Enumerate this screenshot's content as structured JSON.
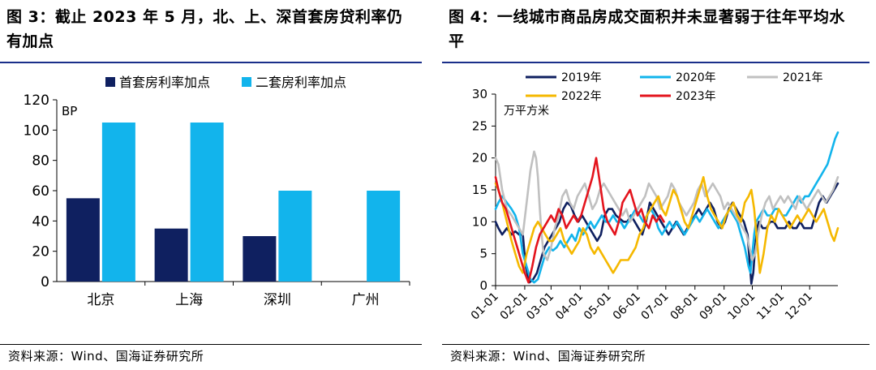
{
  "left": {
    "title": "图 3：截止 2023 年 5 月，北、上、深首套房贷利率仍有加点",
    "source": "资料来源：Wind、国海证券研究所"
  },
  "right": {
    "title": "图 4：一线城市商品房成交面积并未显著弱于往年平均水平",
    "source": "资料来源：Wind、国海证券研究所"
  },
  "colors": {
    "navy": "#0f2060",
    "cyan": "#12b4ec",
    "gray": "#c0c0c0",
    "gold": "#f5b800",
    "red": "#e4141d",
    "rule": "#1a2f8a"
  },
  "chart_data": [
    {
      "type": "bar",
      "categories": [
        "北京",
        "上海",
        "深圳",
        "广州"
      ],
      "series": [
        {
          "name": "首套房利率加点",
          "values": [
            55,
            35,
            30,
            null
          ],
          "color": "#0f2060"
        },
        {
          "name": "二套房利率加点",
          "values": [
            105,
            105,
            60,
            60
          ],
          "color": "#12b4ec"
        }
      ],
      "ylabel": "BP",
      "ylim": [
        0,
        120
      ],
      "yticks": [
        0,
        20,
        40,
        60,
        80,
        100,
        120
      ],
      "legend": "top"
    },
    {
      "type": "line",
      "ylabel": "万平方米",
      "ylim": [
        0,
        30
      ],
      "yticks": [
        0,
        5,
        10,
        15,
        20,
        25,
        30
      ],
      "x_ticklabels": [
        "01-01",
        "02-01",
        "03-01",
        "04-01",
        "05-01",
        "06-01",
        "07-01",
        "08-01",
        "09-01",
        "10-01",
        "11-01",
        "12-01"
      ],
      "legend": "top",
      "series": [
        {
          "name": "2019年",
          "color": "#0f2060",
          "x": [
            1,
            4,
            8,
            13,
            18,
            22,
            26,
            30,
            33,
            37,
            41,
            45,
            49,
            53,
            57,
            61,
            65,
            69,
            73,
            77,
            81,
            85,
            89,
            93,
            97,
            101,
            105,
            109,
            113,
            117,
            121,
            125,
            129,
            133,
            137,
            141,
            145,
            149,
            153,
            157,
            161,
            165,
            169,
            173,
            177,
            181,
            185,
            189,
            193,
            197,
            201,
            205,
            209,
            213,
            217,
            221,
            225,
            229,
            233,
            237,
            241,
            245,
            249,
            253,
            257,
            261,
            265,
            269,
            271,
            273,
            275,
            277,
            279,
            281,
            285,
            289,
            293,
            297,
            301,
            305,
            309,
            313,
            317,
            321,
            325,
            329,
            333,
            337,
            341,
            345,
            349,
            353,
            357,
            361,
            365
          ],
          "values": [
            10,
            9,
            8,
            9,
            8,
            8.5,
            8,
            8,
            3,
            0.5,
            1,
            2,
            4,
            6,
            7,
            8,
            9,
            10,
            12,
            13,
            12.5,
            11,
            10,
            11,
            10,
            9,
            8,
            7,
            8,
            11,
            12,
            12,
            11,
            10.5,
            10,
            10,
            11,
            10,
            9,
            8,
            10,
            13,
            12,
            11,
            10,
            9,
            8,
            9,
            10,
            9,
            8,
            9,
            10,
            11,
            12,
            11,
            12,
            13,
            12,
            10,
            9,
            10,
            12,
            13,
            12,
            11,
            10,
            8,
            4,
            0.3,
            2,
            6,
            9,
            10,
            9,
            9,
            10,
            10,
            9,
            9,
            9,
            10,
            9,
            9,
            10,
            9,
            9,
            9,
            11,
            13,
            14,
            13,
            14,
            15,
            16
          ]
        },
        {
          "name": "2020年",
          "color": "#12b4ec",
          "x": [
            1,
            4,
            8,
            13,
            18,
            22,
            26,
            30,
            34,
            38,
            42,
            46,
            50,
            54,
            58,
            62,
            66,
            70,
            74,
            78,
            82,
            86,
            90,
            94,
            98,
            102,
            106,
            110,
            114,
            118,
            122,
            126,
            130,
            134,
            138,
            142,
            146,
            150,
            154,
            158,
            162,
            166,
            170,
            174,
            178,
            182,
            186,
            190,
            194,
            198,
            202,
            206,
            210,
            214,
            218,
            222,
            226,
            230,
            234,
            238,
            242,
            246,
            250,
            254,
            258,
            262,
            266,
            270,
            272,
            274,
            276,
            278,
            282,
            286,
            290,
            294,
            298,
            302,
            306,
            310,
            314,
            318,
            322,
            326,
            330,
            334,
            338,
            342,
            346,
            350,
            354,
            358,
            362,
            365
          ],
          "values": [
            12,
            13,
            14,
            13,
            12,
            11,
            9,
            5,
            3,
            1,
            0.5,
            1,
            3,
            5,
            6,
            5.5,
            6,
            7,
            6,
            7,
            8,
            7,
            9,
            8,
            9,
            10,
            9,
            10,
            11,
            10,
            10,
            11,
            10,
            10,
            9,
            10,
            11,
            12,
            11,
            10,
            11,
            12,
            11,
            9,
            8,
            9,
            10,
            9,
            10,
            9,
            8,
            9,
            10,
            11,
            10,
            11,
            12,
            11,
            10,
            9,
            10,
            11,
            12,
            11,
            10,
            8,
            6,
            3,
            2,
            5,
            8,
            10,
            11,
            12,
            11,
            11,
            12,
            12,
            11,
            11,
            12,
            13,
            14,
            13,
            14,
            14,
            15,
            16,
            17,
            18,
            19,
            21,
            23,
            24
          ]
        },
        {
          "name": "2021年",
          "color": "#c0c0c0",
          "x": [
            1,
            4,
            8,
            13,
            18,
            22,
            26,
            30,
            34,
            38,
            42,
            44,
            46,
            48,
            50,
            52,
            56,
            60,
            64,
            68,
            72,
            76,
            80,
            84,
            88,
            92,
            96,
            100,
            104,
            108,
            112,
            116,
            120,
            124,
            128,
            132,
            136,
            140,
            144,
            148,
            152,
            156,
            160,
            164,
            168,
            172,
            176,
            180,
            184,
            188,
            192,
            196,
            200,
            204,
            208,
            212,
            216,
            220,
            224,
            228,
            232,
            236,
            240,
            244,
            248,
            252,
            256,
            260,
            264,
            268,
            271,
            274,
            277,
            280,
            284,
            288,
            292,
            296,
            300,
            304,
            308,
            312,
            316,
            320,
            324,
            328,
            332,
            336,
            340,
            344,
            348,
            352,
            356,
            360,
            365
          ],
          "values": [
            20,
            19,
            15,
            12,
            11,
            10,
            9,
            8,
            13,
            18,
            21,
            20,
            17,
            12,
            8,
            5,
            4,
            6,
            9,
            11,
            14,
            15,
            13,
            12,
            14,
            15,
            16,
            14,
            12,
            13,
            15,
            16,
            15,
            14,
            13,
            12,
            11,
            12,
            10,
            11,
            12,
            13,
            14,
            16,
            15,
            14,
            12,
            13,
            14,
            16,
            15,
            13,
            12,
            11,
            12,
            13,
            15,
            16,
            14,
            15,
            16,
            15,
            14,
            12,
            13,
            12,
            11,
            10,
            9,
            8,
            6,
            4,
            5,
            8,
            11,
            13,
            14,
            12,
            13,
            14,
            13,
            14,
            13,
            12,
            14,
            13,
            12,
            13,
            14,
            15,
            14,
            13,
            14,
            15,
            17
          ]
        },
        {
          "name": "2022年",
          "color": "#f5b800",
          "x": [
            1,
            4,
            8,
            13,
            18,
            22,
            26,
            30,
            34,
            38,
            42,
            46,
            50,
            54,
            58,
            62,
            66,
            70,
            74,
            78,
            82,
            86,
            90,
            94,
            98,
            102,
            106,
            110,
            114,
            118,
            122,
            126,
            130,
            134,
            138,
            142,
            146,
            150,
            154,
            158,
            162,
            166,
            170,
            174,
            178,
            182,
            186,
            190,
            194,
            198,
            202,
            206,
            210,
            214,
            218,
            222,
            226,
            230,
            234,
            238,
            242,
            246,
            250,
            254,
            258,
            262,
            266,
            270,
            273,
            276,
            279,
            282,
            286,
            290,
            294,
            298,
            302,
            306,
            310,
            314,
            318,
            322,
            326,
            330,
            334,
            338,
            342,
            346,
            350,
            354,
            358,
            361,
            365
          ],
          "values": [
            16,
            15,
            13,
            10,
            7,
            5,
            3,
            2,
            5,
            7,
            9,
            10,
            9,
            8,
            7,
            7,
            8,
            9,
            7,
            6,
            5,
            6,
            7,
            9,
            8,
            6,
            5,
            6,
            5,
            4,
            3,
            2,
            3,
            4,
            4,
            4,
            5,
            6,
            8,
            9,
            11,
            12,
            13,
            14,
            12,
            11,
            13,
            15,
            14,
            12,
            10,
            9,
            11,
            13,
            15,
            17,
            14,
            12,
            11,
            10,
            9,
            11,
            12,
            13,
            11,
            10,
            13,
            14,
            15,
            12,
            7,
            2,
            5,
            9,
            11,
            10,
            12,
            11,
            10,
            9,
            10,
            11,
            10,
            11,
            12,
            11,
            10,
            11,
            12,
            10,
            8,
            7,
            9
          ]
        },
        {
          "name": "2023年",
          "color": "#e4141d",
          "x": [
            1,
            4,
            8,
            12,
            16,
            20,
            24,
            28,
            32,
            36,
            40,
            44,
            48,
            52,
            56,
            60,
            64,
            68,
            72,
            76,
            80,
            84,
            88,
            92,
            96,
            100,
            104,
            108,
            112,
            116,
            120,
            124,
            128,
            132,
            136,
            140,
            144,
            148,
            152,
            156,
            160,
            164,
            168,
            172,
            176,
            180
          ],
          "values": [
            17,
            15,
            13,
            12,
            10,
            8,
            6,
            4,
            2,
            0.5,
            3,
            6,
            8,
            9,
            10,
            11,
            10,
            12,
            11,
            9,
            10,
            11,
            10,
            11,
            13,
            15,
            17,
            20,
            16,
            12,
            10,
            9,
            8,
            10,
            13,
            14,
            15,
            13,
            11,
            12,
            10,
            9,
            11,
            10,
            11,
            10
          ]
        }
      ]
    }
  ]
}
